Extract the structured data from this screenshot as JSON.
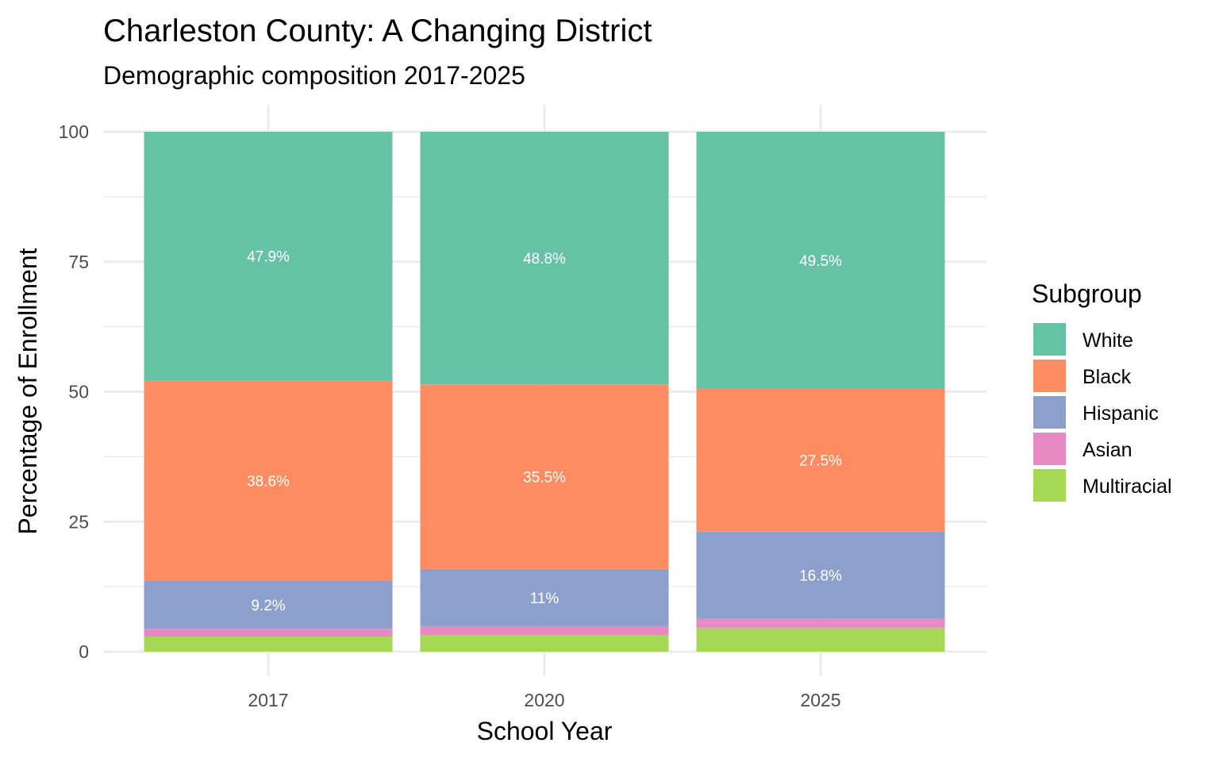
{
  "chart_data": {
    "type": "bar",
    "stacked": true,
    "title": "Charleston County: A Changing District",
    "subtitle": "Demographic composition 2017-2025",
    "xlabel": "School Year",
    "ylabel": "Percentage of Enrollment",
    "ylim": [
      0,
      100
    ],
    "yticks": [
      0,
      25,
      50,
      75,
      100
    ],
    "grid": true,
    "categories": [
      "2017",
      "2020",
      "2025"
    ],
    "legend": {
      "title": "Subgroup",
      "placement": "right"
    },
    "series": [
      {
        "name": "White",
        "color": "#66c2a5",
        "values": [
          47.9,
          48.8,
          49.5
        ],
        "labels": [
          "47.9%",
          "48.8%",
          "49.5%"
        ]
      },
      {
        "name": "Black",
        "color": "#fc8d62",
        "values": [
          38.6,
          35.5,
          27.5
        ],
        "labels": [
          "38.6%",
          "35.5%",
          "27.5%"
        ]
      },
      {
        "name": "Hispanic",
        "color": "#8da0cb",
        "values": [
          9.2,
          11,
          16.8
        ],
        "labels": [
          "9.2%",
          "11%",
          "16.8%"
        ]
      },
      {
        "name": "Asian",
        "color": "#e78ac3",
        "values": [
          1.5,
          1.7,
          1.7
        ],
        "labels": [
          "",
          "",
          ""
        ]
      },
      {
        "name": "Multiracial",
        "color": "#a6d854",
        "values": [
          2.9,
          3.2,
          4.6
        ],
        "labels": [
          "",
          "",
          ""
        ]
      }
    ]
  }
}
